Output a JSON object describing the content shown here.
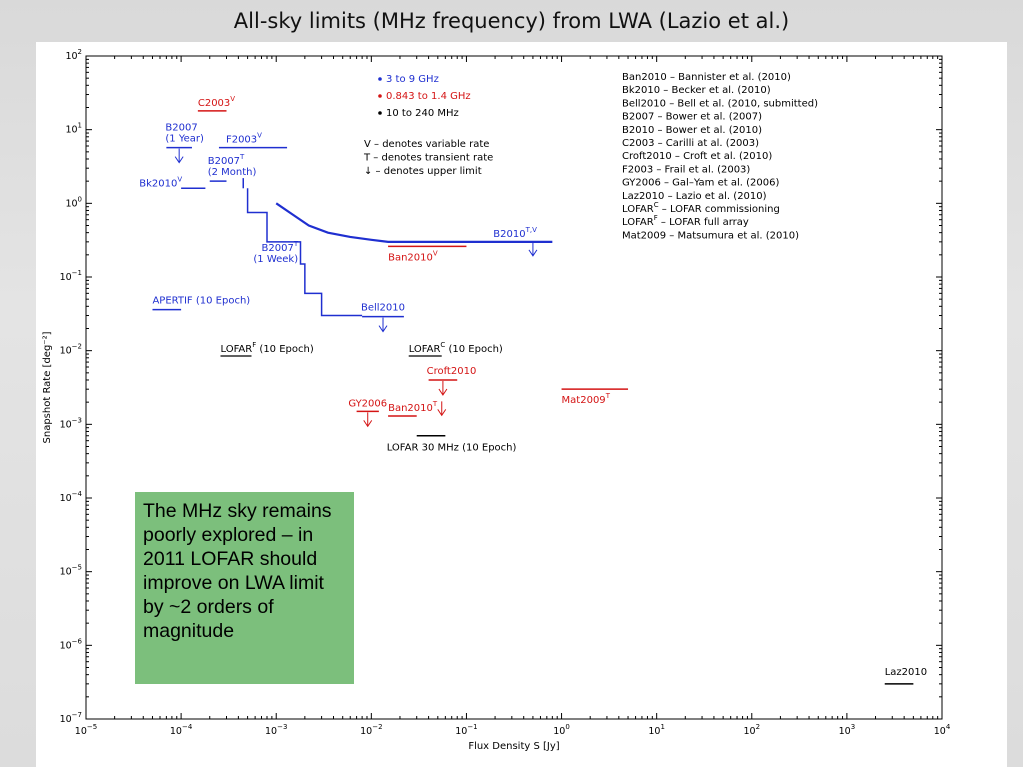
{
  "slide": {
    "title": "All-sky limits (MHz frequency) from LWA (Lazio et al.)",
    "callout_text": "The MHz sky remains poorly explored – in 2011 LOFAR should improve on LWA limit by ~2 orders of magnitude",
    "callout_color": "#7cbf7c"
  },
  "chart_data": {
    "type": "line",
    "xlabel": "Flux Density S [Jy]",
    "ylabel": "Snapshot Rate [deg⁻²]",
    "x_scale": "log",
    "y_scale": "log",
    "xlim": [
      1e-05,
      10000.0
    ],
    "ylim": [
      1e-07,
      100
    ],
    "x_ticks": [
      {
        "value": 1e-05,
        "base": "10",
        "exp": "−5"
      },
      {
        "value": 0.0001,
        "base": "10",
        "exp": "−4"
      },
      {
        "value": 0.001,
        "base": "10",
        "exp": "−3"
      },
      {
        "value": 0.01,
        "base": "10",
        "exp": "−2"
      },
      {
        "value": 0.1,
        "base": "10",
        "exp": "−1"
      },
      {
        "value": 1,
        "base": "10",
        "exp": "0"
      },
      {
        "value": 10,
        "base": "10",
        "exp": "1"
      },
      {
        "value": 100,
        "base": "10",
        "exp": "2"
      },
      {
        "value": 1000,
        "base": "10",
        "exp": "3"
      },
      {
        "value": 10000,
        "base": "10",
        "exp": "4"
      }
    ],
    "y_ticks": [
      {
        "value": 100,
        "base": "10",
        "exp": "2"
      },
      {
        "value": 10,
        "base": "10",
        "exp": "1"
      },
      {
        "value": 1,
        "base": "10",
        "exp": "0"
      },
      {
        "value": 0.1,
        "base": "10",
        "exp": "−1"
      },
      {
        "value": 0.01,
        "base": "10",
        "exp": "−2"
      },
      {
        "value": 0.001,
        "base": "10",
        "exp": "−3"
      },
      {
        "value": 0.0001,
        "base": "10",
        "exp": "−4"
      },
      {
        "value": 1e-05,
        "base": "10",
        "exp": "−5"
      },
      {
        "value": 1e-06,
        "base": "10",
        "exp": "−6"
      },
      {
        "value": 1e-07,
        "base": "10",
        "exp": "−7"
      }
    ],
    "colors": {
      "blue": "#1f2fd0",
      "red": "#d41414",
      "black": "#000000"
    },
    "legend_colors": [
      {
        "text": "3 to 9 GHz",
        "color": "#1f2fd0"
      },
      {
        "text": "0.843 to 1.4 GHz",
        "color": "#d41414"
      },
      {
        "text": "10 to 240 MHz",
        "color": "#000000"
      }
    ],
    "legend_symbols": [
      "V – denotes variable rate",
      "T – denotes transient rate",
      "↓ – denotes upper limit"
    ],
    "references": [
      "Ban2010 – Bannister et al. (2010)",
      "Bk2010    – Becker et al. (2010)",
      "Bell2010 – Bell et al. (2010, submitted)",
      "B2007     – Bower et al. (2007)",
      "B2010     – Bower et al. (2010)",
      "C2003     – Carilli at al. (2003)",
      "Croft2010     – Croft et al. (2010)",
      "F2003     – Frail et al. (2003)",
      "GY2006 – Gal–Yam et al. (2006)",
      "Laz2010     – Lazio et al. (2010)",
      "LOFARC – LOFAR commissioning",
      "LOFARF – LOFAR full array",
      "Mat2009 – Matsumura et al. (2010)"
    ],
    "limits": [
      {
        "id": "C2003",
        "label": "C2003",
        "sup": "V",
        "color": "red",
        "x": [
          0.00015,
          0.0003
        ],
        "y": 18,
        "upper_limit": false
      },
      {
        "id": "B2007-1yr",
        "label": "B2007",
        "label2": "(1 Year)",
        "color": "blue",
        "x": [
          7e-05,
          0.00013
        ],
        "y": 5.7,
        "upper_limit": true
      },
      {
        "id": "F2003",
        "label": "F2003",
        "sup": "V",
        "color": "blue",
        "x": [
          0.00025,
          0.0013
        ],
        "y": 5.7,
        "upper_limit": false
      },
      {
        "id": "B2007-2mo",
        "label": "B2007",
        "sup": "T",
        "label2": "(2 Month)",
        "color": "blue",
        "x": [
          0.0002,
          0.0003
        ],
        "y": 2,
        "upper_limit": false
      },
      {
        "id": "Bk2010",
        "label": "Bk2010",
        "sup": "V",
        "color": "blue",
        "x": [
          0.0001,
          0.00018
        ],
        "y": 1.6,
        "upper_limit": false
      },
      {
        "id": "B2007-1wk",
        "label": "B2007",
        "sup": "T",
        "label2": "(1 Week)",
        "color": "blue",
        "steps": [
          [
            0.0005,
            1.6
          ],
          [
            0.0005,
            0.75
          ],
          [
            0.0008,
            0.75
          ],
          [
            0.0008,
            0.3
          ],
          [
            0.0018,
            0.3
          ],
          [
            0.0018,
            0.15
          ],
          [
            0.002,
            0.15
          ],
          [
            0.002,
            0.06
          ],
          [
            0.003,
            0.06
          ],
          [
            0.003,
            0.03
          ],
          [
            0.008,
            0.03
          ]
        ]
      },
      {
        "id": "B2010",
        "label": "B2010",
        "sup": "T,V",
        "color": "blue",
        "curve": [
          [
            0.001,
            1
          ],
          [
            0.0015,
            0.7
          ],
          [
            0.0022,
            0.5
          ],
          [
            0.0035,
            0.4
          ],
          [
            0.006,
            0.35
          ],
          [
            0.01,
            0.32
          ],
          [
            0.015,
            0.3
          ],
          [
            0.02,
            0.3
          ],
          [
            0.8,
            0.3
          ]
        ],
        "arrow_x": 0.5,
        "arrow_y": 0.3
      },
      {
        "id": "Ban2010V",
        "label": "Ban2010",
        "sup": "V",
        "color": "red",
        "x": [
          0.015,
          0.1
        ],
        "y": 0.26,
        "upper_limit": false
      },
      {
        "id": "APERTIF",
        "label": "APERTIF (10 Epoch)",
        "color": "blue",
        "x": [
          5e-05,
          0.0001
        ],
        "y": 0.036,
        "upper_limit": false
      },
      {
        "id": "Bell2010",
        "label": "Bell2010",
        "color": "blue",
        "x": [
          0.008,
          0.022
        ],
        "y": 0.029,
        "upper_limit": true
      },
      {
        "id": "LOFAR-F",
        "label": "LOFAR",
        "sup": "F",
        "label_suffix": " (10 Epoch)",
        "color": "black",
        "x": [
          0.0003,
          0.001
        ],
        "y": 0.009,
        "upper_limit": false
      },
      {
        "id": "LOFAR-C",
        "label": "LOFAR",
        "sup": "C",
        "label_suffix": " (10 Epoch)",
        "color": "black",
        "x": [
          0.03,
          0.1
        ],
        "y": 0.009,
        "upper_limit": false
      },
      {
        "id": "Croft2010",
        "label": "Croft2010",
        "color": "red",
        "x": [
          0.04,
          0.08
        ],
        "y": 0.004,
        "upper_limit": true
      },
      {
        "id": "Mat2009",
        "label": "Mat2009",
        "sup": "T",
        "color": "red",
        "x": [
          1,
          5
        ],
        "y": 0.003,
        "upper_limit": false
      },
      {
        "id": "GY2006",
        "label": "GY2006",
        "color": "red",
        "x": [
          0.007,
          0.012
        ],
        "y": 0.0015,
        "upper_limit": true
      },
      {
        "id": "Ban2010T",
        "label": "Ban2010",
        "sup": "T",
        "color": "red",
        "x": [
          0.015,
          0.03
        ],
        "y": 0.0013,
        "upper_limit": false
      },
      {
        "id": "LOFAR30",
        "label": "LOFAR 30 MHz (10 Epoch)",
        "color": "black",
        "x": [
          0.03,
          0.06
        ],
        "y": 0.0007,
        "upper_limit": false
      },
      {
        "id": "Laz2010",
        "label": "Laz2010",
        "color": "black",
        "x": [
          2500,
          5000
        ],
        "y": 3e-07,
        "upper_limit": false
      }
    ]
  }
}
